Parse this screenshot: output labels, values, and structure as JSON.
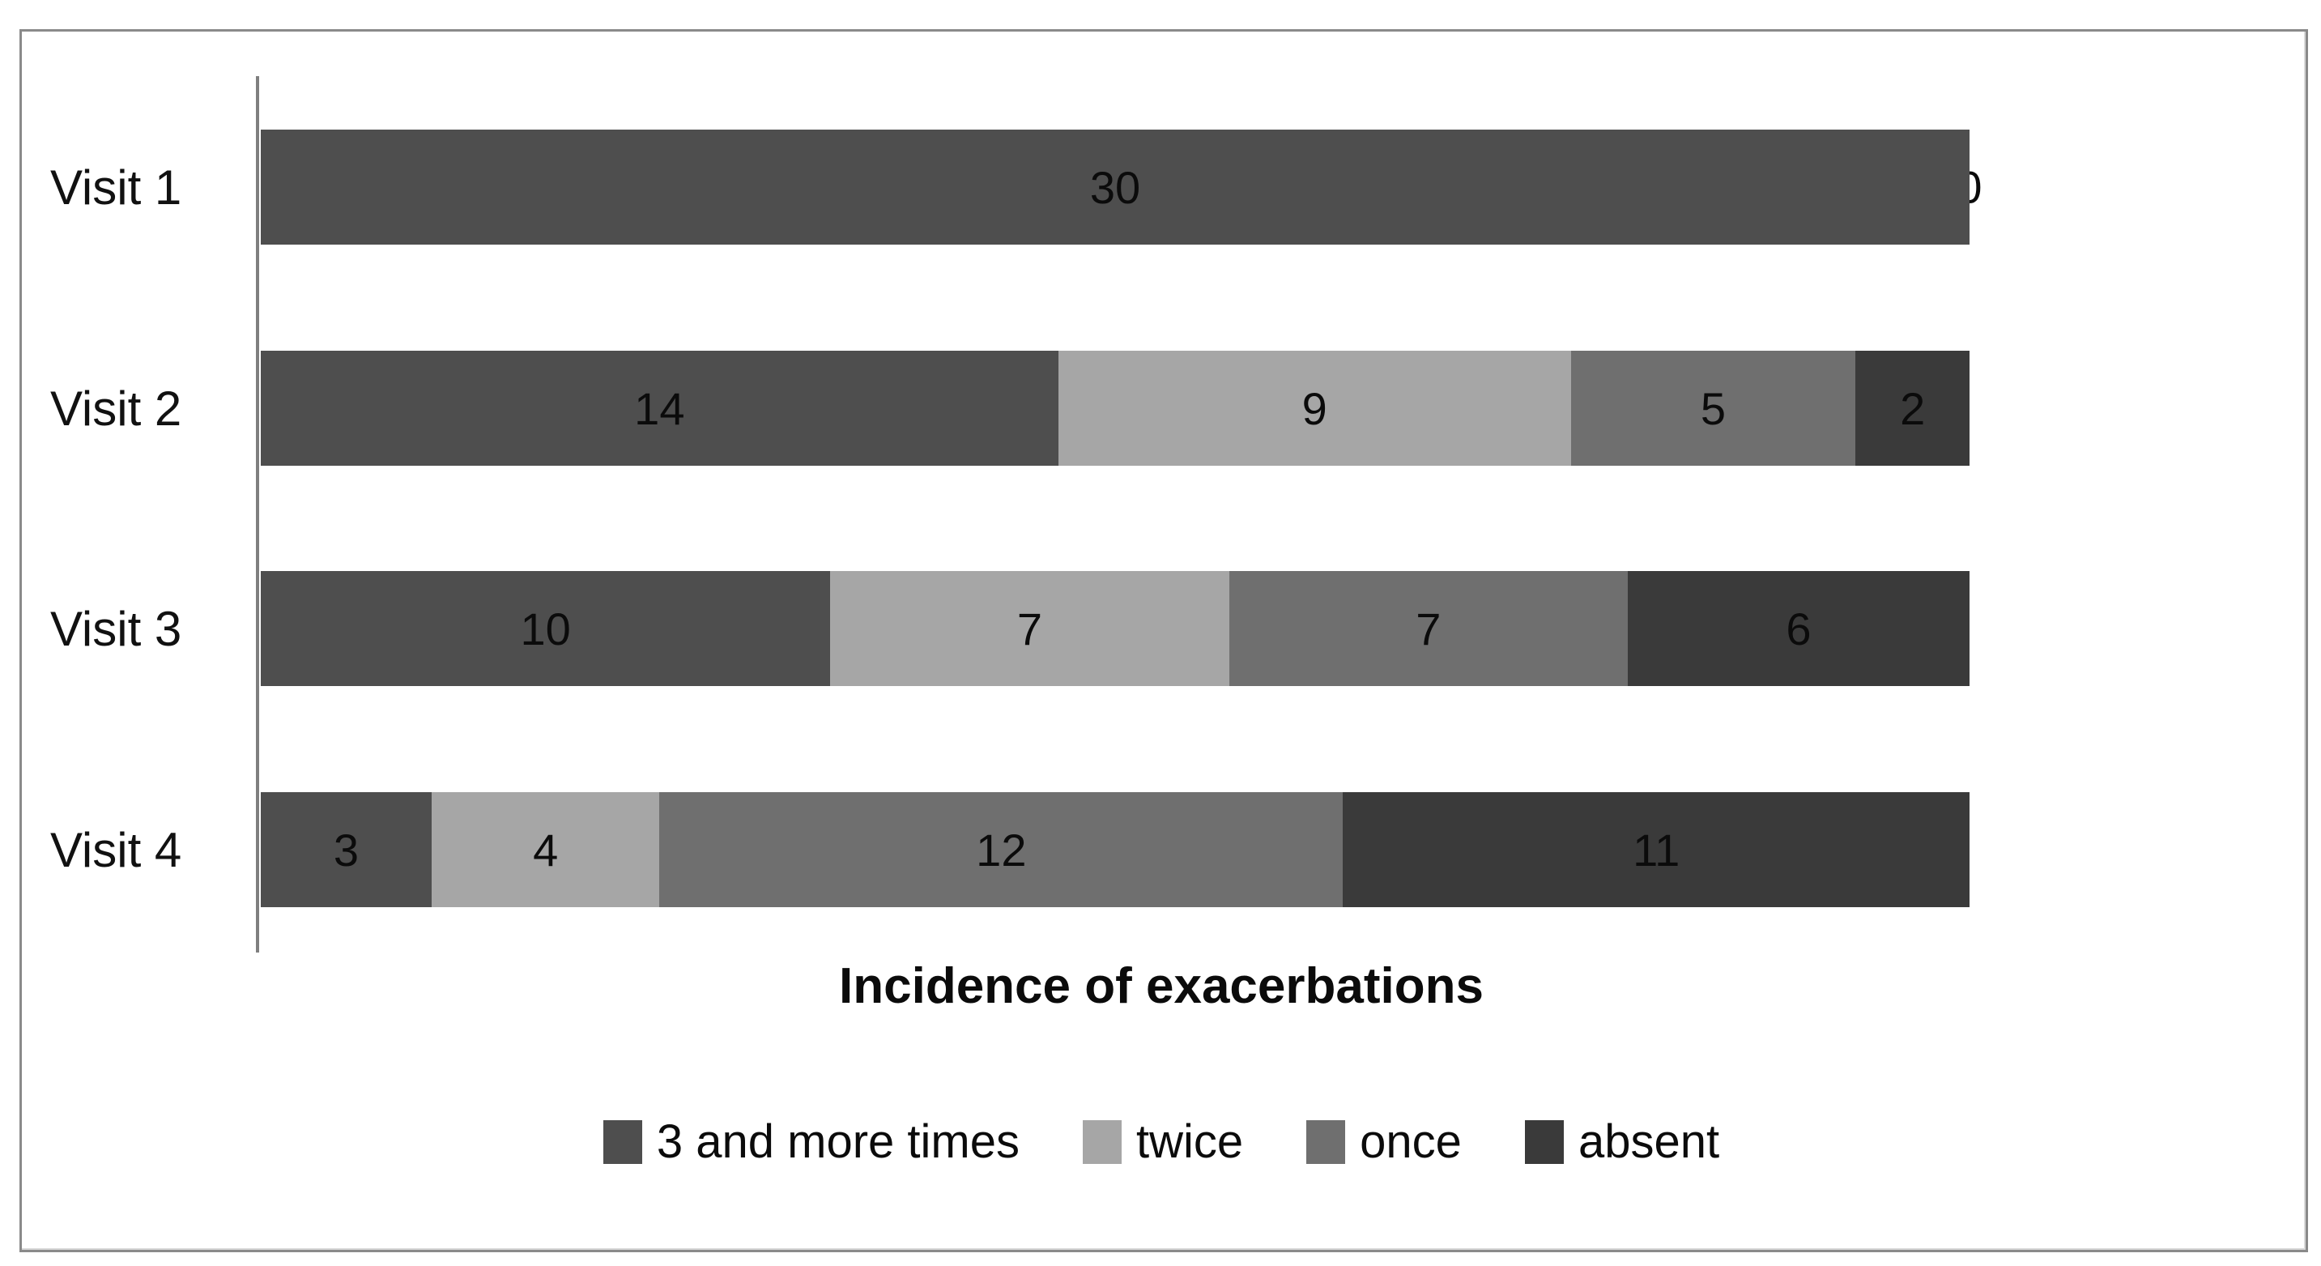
{
  "chart_data": {
    "type": "bar",
    "variant": "horizontal-stacked",
    "title": "Incidence of exacerbations",
    "categories": [
      "Visit 1",
      "Visit 2",
      "Visit 3",
      "Visit 4"
    ],
    "series": [
      {
        "name": "3 and more times",
        "color": "#4e4e4e",
        "values": [
          30,
          14,
          10,
          3
        ]
      },
      {
        "name": "twice",
        "color": "#a6a6a6",
        "values": [
          0,
          9,
          7,
          4
        ]
      },
      {
        "name": "once",
        "color": "#6f6f6f",
        "values": [
          0,
          5,
          7,
          12
        ]
      },
      {
        "name": "absent",
        "color": "#3a3a3a",
        "values": [
          0,
          2,
          6,
          11
        ]
      }
    ],
    "xlim": [
      0,
      30
    ],
    "value_labels": [
      [
        "30",
        "0"
      ],
      [
        "14",
        "9",
        "5",
        "2"
      ],
      [
        "10",
        "7",
        "7",
        "6"
      ],
      [
        "3",
        "4",
        "12",
        "11"
      ]
    ],
    "legend_position": "bottom",
    "grid": false,
    "axis_color": "#7f7f7f",
    "frame_color": "#8a8a8a",
    "text_color": "#0b0b0b"
  },
  "layout_note": "values are counts of patients; rows each total 30"
}
